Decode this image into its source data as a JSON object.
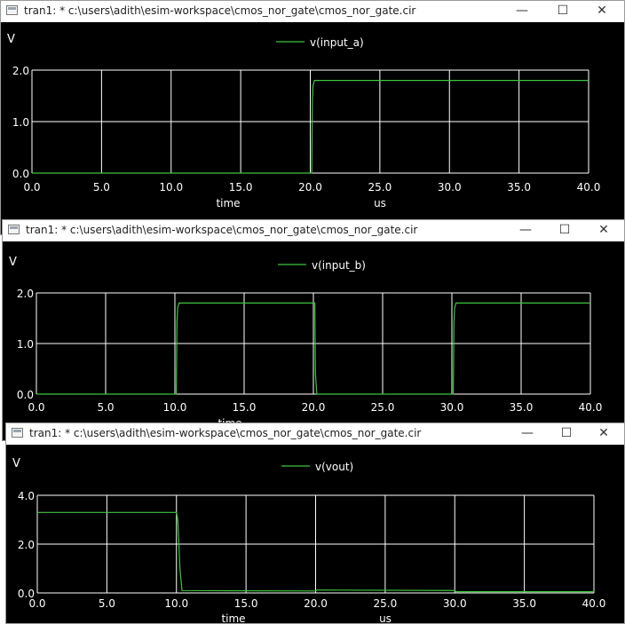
{
  "colors": {
    "trace": "#3ec43e",
    "grid": "#ffffff",
    "background": "#000000",
    "text": "#ffffff"
  },
  "icons": {
    "minimize": "minimize-icon",
    "maximize": "maximize-icon",
    "close": "close-icon",
    "app": "app-window-icon"
  },
  "controls": {
    "minimize": "—",
    "maximize": "☐",
    "close": "✕"
  },
  "windows": [
    {
      "title": "tran1: * c:\\users\\adith\\esim-workspace\\cmos_nor_gate\\cmos_nor_gate.cir",
      "chart_data": {
        "type": "line",
        "ylabel": "V",
        "xlabel": "time",
        "xunit": "us",
        "xlim": [
          0,
          40
        ],
        "ylim": [
          0,
          2
        ],
        "xticks": [
          "0.0",
          "5.0",
          "10.0",
          "15.0",
          "20.0",
          "25.0",
          "30.0",
          "35.0",
          "40.0"
        ],
        "yticks": [
          "0.0",
          "1.0",
          "2.0"
        ],
        "grid": true,
        "legend_position": "top-center",
        "series": [
          {
            "name": "v(input_a)",
            "x": [
              0,
              20.1,
              20.15,
              20.2,
              20.3,
              40
            ],
            "y": [
              0,
              0,
              1.4,
              1.7,
              1.8,
              1.8
            ]
          }
        ]
      }
    },
    {
      "title": "tran1: * c:\\users\\adith\\esim-workspace\\cmos_nor_gate\\cmos_nor_gate.cir",
      "chart_data": {
        "type": "line",
        "ylabel": "V",
        "xlabel": "time",
        "xunit": "",
        "xlim": [
          0,
          40
        ],
        "ylim": [
          0,
          2
        ],
        "xticks": [
          "0.0",
          "5.0",
          "10.0",
          "15.0",
          "20.0",
          "25.0",
          "30.0",
          "35.0",
          "40.0"
        ],
        "yticks": [
          "0.0",
          "1.0",
          "2.0"
        ],
        "grid": true,
        "legend_position": "top-center",
        "series": [
          {
            "name": "v(input_b)",
            "x": [
              0,
              10.1,
              10.15,
              10.2,
              10.3,
              20.1,
              20.15,
              20.25,
              30.1,
              30.15,
              30.2,
              30.3,
              40
            ],
            "y": [
              0,
              0,
              1.4,
              1.7,
              1.8,
              1.8,
              0.4,
              0,
              0,
              1.4,
              1.7,
              1.8,
              1.8
            ]
          }
        ]
      }
    },
    {
      "title": "tran1: * c:\\users\\adith\\esim-workspace\\cmos_nor_gate\\cmos_nor_gate.cir",
      "chart_data": {
        "type": "line",
        "ylabel": "V",
        "xlabel": "time",
        "xunit": "us",
        "xlim": [
          0,
          40
        ],
        "ylim": [
          0,
          4
        ],
        "xticks": [
          "0.0",
          "5.0",
          "10.0",
          "15.0",
          "20.0",
          "25.0",
          "30.0",
          "35.0",
          "40.0"
        ],
        "yticks": [
          "0.0",
          "2.0",
          "4.0"
        ],
        "grid": true,
        "legend_position": "top-center",
        "series": [
          {
            "name": "v(vout)",
            "x": [
              0,
              10.0,
              10.1,
              10.25,
              10.4,
              20.0,
              20.1,
              30.0,
              30.1,
              40
            ],
            "y": [
              3.3,
              3.3,
              3.0,
              1.0,
              0.1,
              0.08,
              0.12,
              0.1,
              0.05,
              0.05
            ]
          }
        ]
      }
    }
  ]
}
